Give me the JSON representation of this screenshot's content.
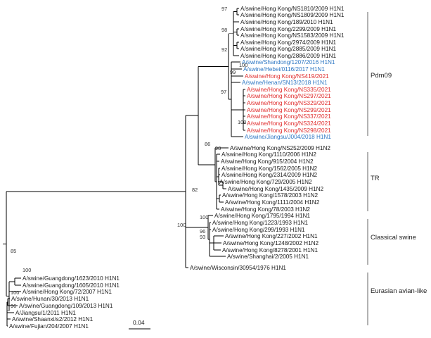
{
  "colors": {
    "default": "#1a1a1a",
    "blue": "#2f78c4",
    "red": "#e02c2c"
  },
  "leaves": [
    {
      "id": "L1",
      "label": "A/swine/Hong Kong/NS1810/2009 H1N1",
      "color": "default"
    },
    {
      "id": "L2",
      "label": "A/swine/Hong Kong/NS1809/2009 H1N1",
      "color": "default"
    },
    {
      "id": "L3",
      "label": "A/swine/Hong Kong/189/2010 H1N1",
      "color": "default"
    },
    {
      "id": "L4",
      "label": "A/swine/Hong Kong/2299/2009 H1N1",
      "color": "default"
    },
    {
      "id": "L5",
      "label": "A/swine/Hong Kong/NS1583/2009 H1N1",
      "color": "default"
    },
    {
      "id": "L6",
      "label": "A/swine/Hong Kong/2974/2009 H1N1",
      "color": "default"
    },
    {
      "id": "L7",
      "label": "A/swine/Hong Kong/2885/2009 H1N1",
      "color": "default"
    },
    {
      "id": "L8",
      "label": "A/swine/Hong Kong/2886/2009 H1N1",
      "color": "default"
    },
    {
      "id": "L9",
      "label": "A/swine/Shandong/1207/2016 H1N1",
      "color": "blue"
    },
    {
      "id": "L10",
      "label": "A/swine/Hebei/0116/2017 H1N1",
      "color": "blue"
    },
    {
      "id": "L11",
      "label": "A/swine/Hong Kong/NS419/2021",
      "color": "red"
    },
    {
      "id": "L12",
      "label": "A/swine/Henan/SN13/2018 H1N1",
      "color": "blue"
    },
    {
      "id": "L13",
      "label": "A/swine/Hong Kong/NS335/2021",
      "color": "red"
    },
    {
      "id": "L14",
      "label": "A/swine/Hong Kong/NS297/2021",
      "color": "red"
    },
    {
      "id": "L15",
      "label": "A/swine/Hong Kong/NS329/2021",
      "color": "red"
    },
    {
      "id": "L16",
      "label": "A/swine/Hong Kong/NS299/2021",
      "color": "red"
    },
    {
      "id": "L17",
      "label": "A/swine/Hong Kong/NS337/2021",
      "color": "red"
    },
    {
      "id": "L18",
      "label": "A/swine/Hong Kong/NS324/2021",
      "color": "red"
    },
    {
      "id": "L19",
      "label": "A/swine/Hong Kong/NS298/2021",
      "color": "red"
    },
    {
      "id": "L20",
      "label": "A/swine/Jiangsu/J004/2018 H1N1",
      "color": "blue"
    },
    {
      "id": "L21",
      "label": "A/swine/Hong Kong/NS252/2009 H1N2",
      "color": "default"
    },
    {
      "id": "L22",
      "label": "A/swine/Hong Kong/1110/2006 H1N2",
      "color": "default"
    },
    {
      "id": "L23",
      "label": "A/swine/Hong Kong/915/2004 H1N2",
      "color": "default"
    },
    {
      "id": "L24",
      "label": "A/swine/Hong Kong/1562/2005 H1N2",
      "color": "default"
    },
    {
      "id": "L25",
      "label": "A/swine/Hong Kong/2314/2009 H1N2",
      "color": "default"
    },
    {
      "id": "L26",
      "label": "A/swine/Hong Kong/729/2005 H1N2",
      "color": "default"
    },
    {
      "id": "L27",
      "label": "A/swine/Hong Kong/1435/2009 H1N2",
      "color": "default"
    },
    {
      "id": "L28",
      "label": "A/swine/Hong Kong/1578/2003 H1N2",
      "color": "default"
    },
    {
      "id": "L29",
      "label": "A/swine/Hong Kong/1111/2004 H1N2",
      "color": "default"
    },
    {
      "id": "L30",
      "label": "A/swine/Hong Kong/78/2003 H1N2",
      "color": "default"
    },
    {
      "id": "L31",
      "label": "A/swine/Hong Kong/1795/1994 H1N1",
      "color": "default"
    },
    {
      "id": "L32",
      "label": "A/swine/Hong Kong/1223/1993 H1N1",
      "color": "default"
    },
    {
      "id": "L33",
      "label": "A/swine/Hong Kong/299/1993 H1N1",
      "color": "default"
    },
    {
      "id": "L34",
      "label": "A/swine/Hong Kong/227/2002 H1N1",
      "color": "default"
    },
    {
      "id": "L35",
      "label": "A/swine/Hong Kong/1248/2002 H1N2",
      "color": "default"
    },
    {
      "id": "L36",
      "label": "A/swine/Hong Kong/8278/2001 H1N1",
      "color": "default"
    },
    {
      "id": "L37",
      "label": "A/swine/Shanghai/2/2005 H1N1",
      "color": "default"
    },
    {
      "id": "L38",
      "label": "A/swine/Wisconsin/30954/1976 H1N1",
      "color": "default"
    },
    {
      "id": "L39",
      "label": "A/swine/Guangdong/1623/2010 H1N1",
      "color": "default"
    },
    {
      "id": "L40",
      "label": "A/swine/Guangdong/1605/2010 H1N1",
      "color": "default"
    },
    {
      "id": "L41",
      "label": "A/swine/Hong Kong/72/2007 H1N1",
      "color": "default"
    },
    {
      "id": "L42",
      "label": "A/swine/Hunan/30/2013 H1N1",
      "color": "default"
    },
    {
      "id": "L43",
      "label": "A/swine/Guangdong/109/2013 H1N1",
      "color": "default"
    },
    {
      "id": "L44",
      "label": "A/Jiangsu/1/2011 H1N1",
      "color": "default"
    },
    {
      "id": "L45",
      "label": "A/swine/Shaanxi/s2/2012 H1N1",
      "color": "default"
    },
    {
      "id": "L46",
      "label": "A/swine/Fujian/204/2007 H1N1",
      "color": "default"
    }
  ],
  "bootstrap": [
    "97",
    "98",
    "92",
    "100",
    "99",
    "97",
    "100",
    "98",
    "86",
    "82",
    "100",
    "100",
    "96",
    "93",
    "85",
    "100",
    "100",
    "96"
  ],
  "clades": [
    {
      "name": "Pdm09"
    },
    {
      "name": "TR"
    },
    {
      "name": "Classical swine"
    },
    {
      "name": "Eurasian avian-like"
    }
  ],
  "scale_bar": {
    "label": "0.04"
  }
}
